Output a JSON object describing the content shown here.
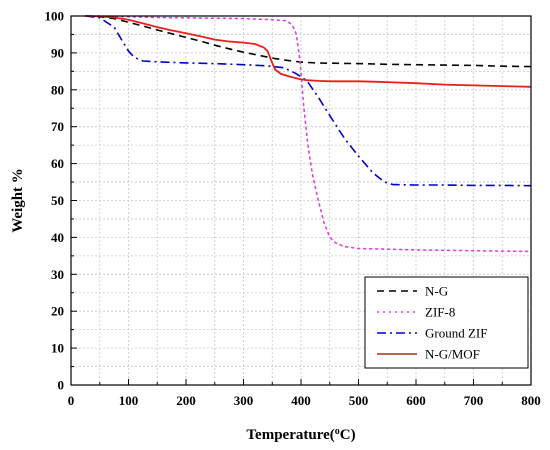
{
  "chart_data": {
    "type": "line",
    "xlabel": "Temperature(°C)",
    "xlabel_parts": {
      "main": "Temperature(",
      "sup": "o",
      "end": "C)"
    },
    "ylabel": "Weight %",
    "xlim": [
      0,
      800
    ],
    "ylim": [
      0,
      100
    ],
    "xticks": [
      0,
      100,
      200,
      300,
      400,
      500,
      600,
      700,
      800
    ],
    "yticks": [
      0,
      10,
      20,
      30,
      40,
      50,
      60,
      70,
      80,
      90,
      100
    ],
    "grid": true,
    "legend_position": "bottom-right",
    "series": [
      {
        "name": "N-G",
        "color": "#000000",
        "dash": "dash",
        "points": [
          [
            25,
            100
          ],
          [
            50,
            99.8
          ],
          [
            75,
            99.3
          ],
          [
            100,
            98.3
          ],
          [
            125,
            97.3
          ],
          [
            150,
            96.2
          ],
          [
            175,
            95.2
          ],
          [
            200,
            94.2
          ],
          [
            225,
            93.2
          ],
          [
            250,
            92.1
          ],
          [
            275,
            91.1
          ],
          [
            300,
            90.2
          ],
          [
            325,
            89.4
          ],
          [
            350,
            88.6
          ],
          [
            375,
            88
          ],
          [
            400,
            87.5
          ],
          [
            425,
            87.3
          ],
          [
            450,
            87.2
          ],
          [
            500,
            87.1
          ],
          [
            550,
            86.9
          ],
          [
            600,
            86.8
          ],
          [
            650,
            86.7
          ],
          [
            700,
            86.6
          ],
          [
            750,
            86.4
          ],
          [
            800,
            86.3
          ]
        ]
      },
      {
        "name": "ZIF-8",
        "color": "#dd44dd",
        "dash": "dot",
        "points": [
          [
            25,
            100
          ],
          [
            50,
            100
          ],
          [
            100,
            99.8
          ],
          [
            150,
            99.6
          ],
          [
            200,
            99.5
          ],
          [
            250,
            99.4
          ],
          [
            300,
            99.3
          ],
          [
            350,
            99
          ],
          [
            375,
            98.7
          ],
          [
            385,
            97.5
          ],
          [
            392,
            95
          ],
          [
            398,
            88
          ],
          [
            405,
            75
          ],
          [
            412,
            65
          ],
          [
            420,
            57
          ],
          [
            430,
            50
          ],
          [
            440,
            44
          ],
          [
            450,
            40
          ],
          [
            460,
            38.5
          ],
          [
            475,
            37.5
          ],
          [
            500,
            37
          ],
          [
            550,
            36.8
          ],
          [
            600,
            36.6
          ],
          [
            650,
            36.5
          ],
          [
            700,
            36.4
          ],
          [
            750,
            36.3
          ],
          [
            800,
            36.2
          ]
        ]
      },
      {
        "name": "Ground ZIF",
        "color": "#0000cc",
        "dash": "dashdot",
        "points": [
          [
            25,
            100
          ],
          [
            50,
            99.5
          ],
          [
            75,
            97
          ],
          [
            90,
            93
          ],
          [
            100,
            90.5
          ],
          [
            110,
            88.8
          ],
          [
            125,
            87.8
          ],
          [
            150,
            87.6
          ],
          [
            200,
            87.3
          ],
          [
            250,
            87.1
          ],
          [
            300,
            86.8
          ],
          [
            340,
            86.5
          ],
          [
            370,
            86
          ],
          [
            390,
            84.5
          ],
          [
            410,
            82.5
          ],
          [
            430,
            78
          ],
          [
            450,
            73
          ],
          [
            475,
            67
          ],
          [
            500,
            62
          ],
          [
            525,
            57.5
          ],
          [
            545,
            55
          ],
          [
            560,
            54.3
          ],
          [
            600,
            54.2
          ],
          [
            650,
            54.2
          ],
          [
            700,
            54.1
          ],
          [
            750,
            54.1
          ],
          [
            800,
            54
          ]
        ]
      },
      {
        "name": "N-G/MOF",
        "color": "#e8201c",
        "dash": "solid",
        "points": [
          [
            25,
            100
          ],
          [
            50,
            99.9
          ],
          [
            75,
            99.6
          ],
          [
            100,
            99
          ],
          [
            125,
            98
          ],
          [
            150,
            97
          ],
          [
            175,
            96.1
          ],
          [
            200,
            95.3
          ],
          [
            225,
            94.5
          ],
          [
            250,
            93.6
          ],
          [
            275,
            93.1
          ],
          [
            300,
            92.8
          ],
          [
            320,
            92.4
          ],
          [
            335,
            91.5
          ],
          [
            342,
            90.5
          ],
          [
            348,
            88
          ],
          [
            355,
            85.5
          ],
          [
            365,
            84.3
          ],
          [
            380,
            83.6
          ],
          [
            395,
            83
          ],
          [
            410,
            82.6
          ],
          [
            430,
            82.4
          ],
          [
            450,
            82.3
          ],
          [
            500,
            82.3
          ],
          [
            550,
            82.1
          ],
          [
            600,
            81.8
          ],
          [
            650,
            81.4
          ],
          [
            700,
            81.2
          ],
          [
            750,
            81
          ],
          [
            800,
            80.8
          ]
        ]
      }
    ]
  }
}
